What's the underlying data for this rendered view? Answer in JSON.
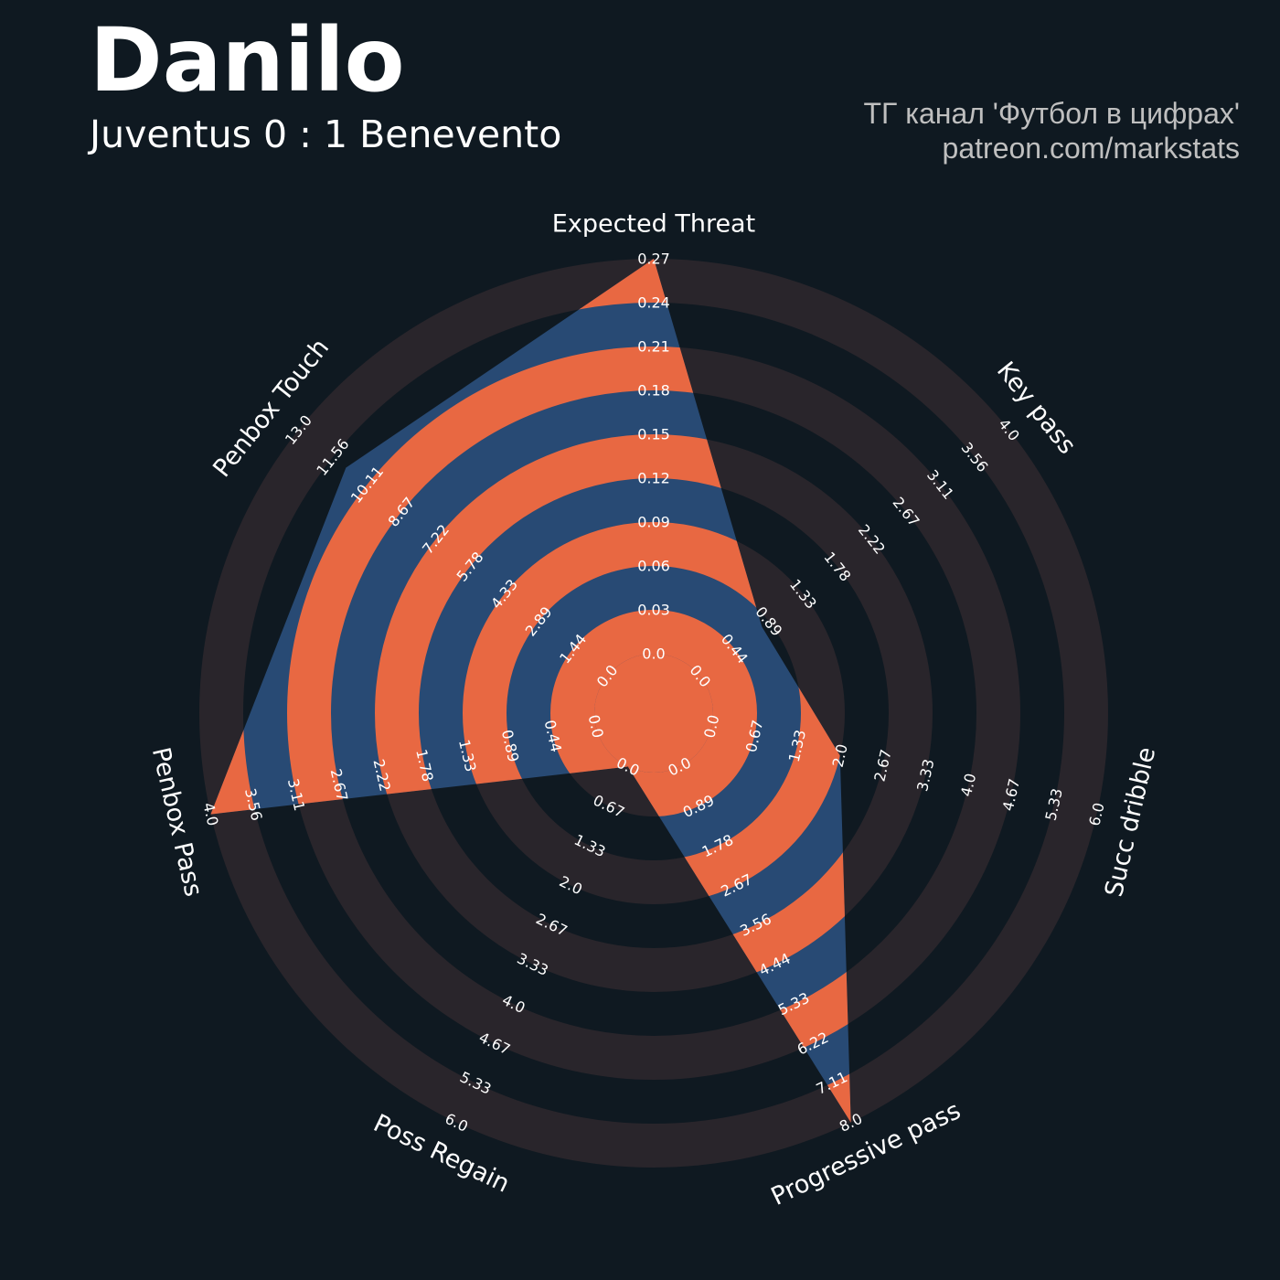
{
  "header": {
    "player": "Danilo",
    "match": "Juventus 0 : 1 Benevento",
    "credit_line1": "ТГ канал 'Футбол в цифрах'",
    "credit_line2": "patreon.com/markstats"
  },
  "colors": {
    "background": "#0f1921",
    "ring": "#29252b",
    "polygon": "#284a74",
    "polygon_band": "#e86842",
    "label": "#ffffff"
  },
  "chart_data": {
    "type": "radar",
    "rings": 9,
    "axes": [
      {
        "name": "Expected Threat",
        "min": 0.0,
        "max": 0.27,
        "value": 0.27,
        "ticks": [
          "0.0",
          "0.03",
          "0.06",
          "0.09",
          "0.12",
          "0.15",
          "0.18",
          "0.21",
          "0.24",
          "0.27"
        ]
      },
      {
        "name": "Key pass",
        "min": 0.0,
        "max": 4.0,
        "value": 0.8,
        "ticks": [
          "0.0",
          "0.44",
          "0.89",
          "1.33",
          "1.78",
          "2.22",
          "2.67",
          "3.11",
          "3.56",
          "4.0"
        ]
      },
      {
        "name": "Succ dribble",
        "min": 0.0,
        "max": 6.0,
        "value": 2.0,
        "ticks": [
          "0.0",
          "0.67",
          "1.33",
          "2.0",
          "2.67",
          "3.33",
          "4.0",
          "4.67",
          "5.33",
          "6.0"
        ]
      },
      {
        "name": "Progressive pass",
        "min": 0.0,
        "max": 8.0,
        "value": 8.0,
        "ticks": [
          "0.0",
          "0.89",
          "1.78",
          "2.67",
          "3.56",
          "4.44",
          "5.33",
          "6.22",
          "7.11",
          "8.0"
        ]
      },
      {
        "name": "Poss Regain",
        "min": 0.0,
        "max": 6.0,
        "value": 0.0,
        "ticks": [
          "0.0",
          "0.67",
          "1.33",
          "2.0",
          "2.67",
          "3.33",
          "4.0",
          "4.67",
          "5.33",
          "6.0"
        ]
      },
      {
        "name": "Penbox Pass",
        "min": 0.0,
        "max": 4.0,
        "value": 4.0,
        "ticks": [
          "0.0",
          "0.44",
          "0.89",
          "1.33",
          "1.78",
          "2.22",
          "2.67",
          "3.11",
          "3.56",
          "4.0"
        ]
      },
      {
        "name": "Penbox Touch",
        "min": 0.0,
        "max": 13.0,
        "value": 11.0,
        "ticks": [
          "0.0",
          "1.44",
          "2.89",
          "4.33",
          "5.78",
          "7.22",
          "8.67",
          "10.11",
          "11.56",
          "13.0"
        ]
      }
    ]
  }
}
